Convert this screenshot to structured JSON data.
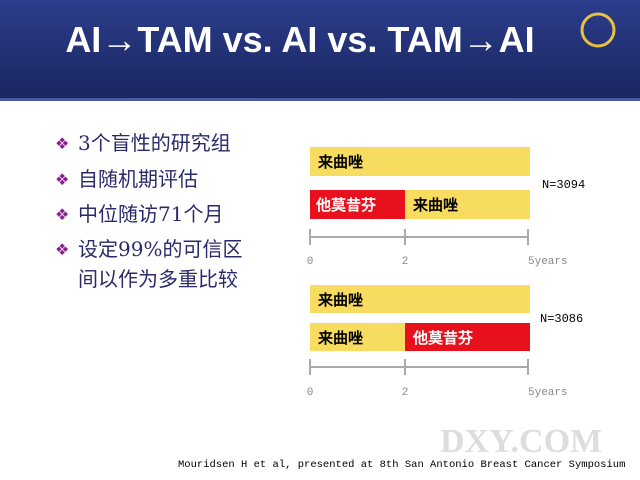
{
  "header": {
    "title": "AI→TAM vs. AI vs. TAM→AI"
  },
  "bullets": [
    "3个盲性的研究组",
    "自随机期评估",
    "中位随访71个月",
    "设定99%的可信区",
    "间以作为多重比较"
  ],
  "diagrams": [
    {
      "rows": [
        [
          "来曲唑"
        ],
        [
          "他莫昔芬",
          "来曲唑"
        ]
      ],
      "n": "N=3094",
      "ticks": [
        "0",
        "2",
        "5years"
      ]
    },
    {
      "rows": [
        [
          "来曲唑"
        ],
        [
          "来曲唑",
          "他莫昔芬"
        ]
      ],
      "n": "N=3086",
      "ticks": [
        "0",
        "2",
        "5years"
      ]
    }
  ],
  "footer": {
    "citation": "Mouridsen H   et al, presented at 8th San Antonio Breast Cancer Symposium",
    "watermark": "DXY.COM"
  }
}
